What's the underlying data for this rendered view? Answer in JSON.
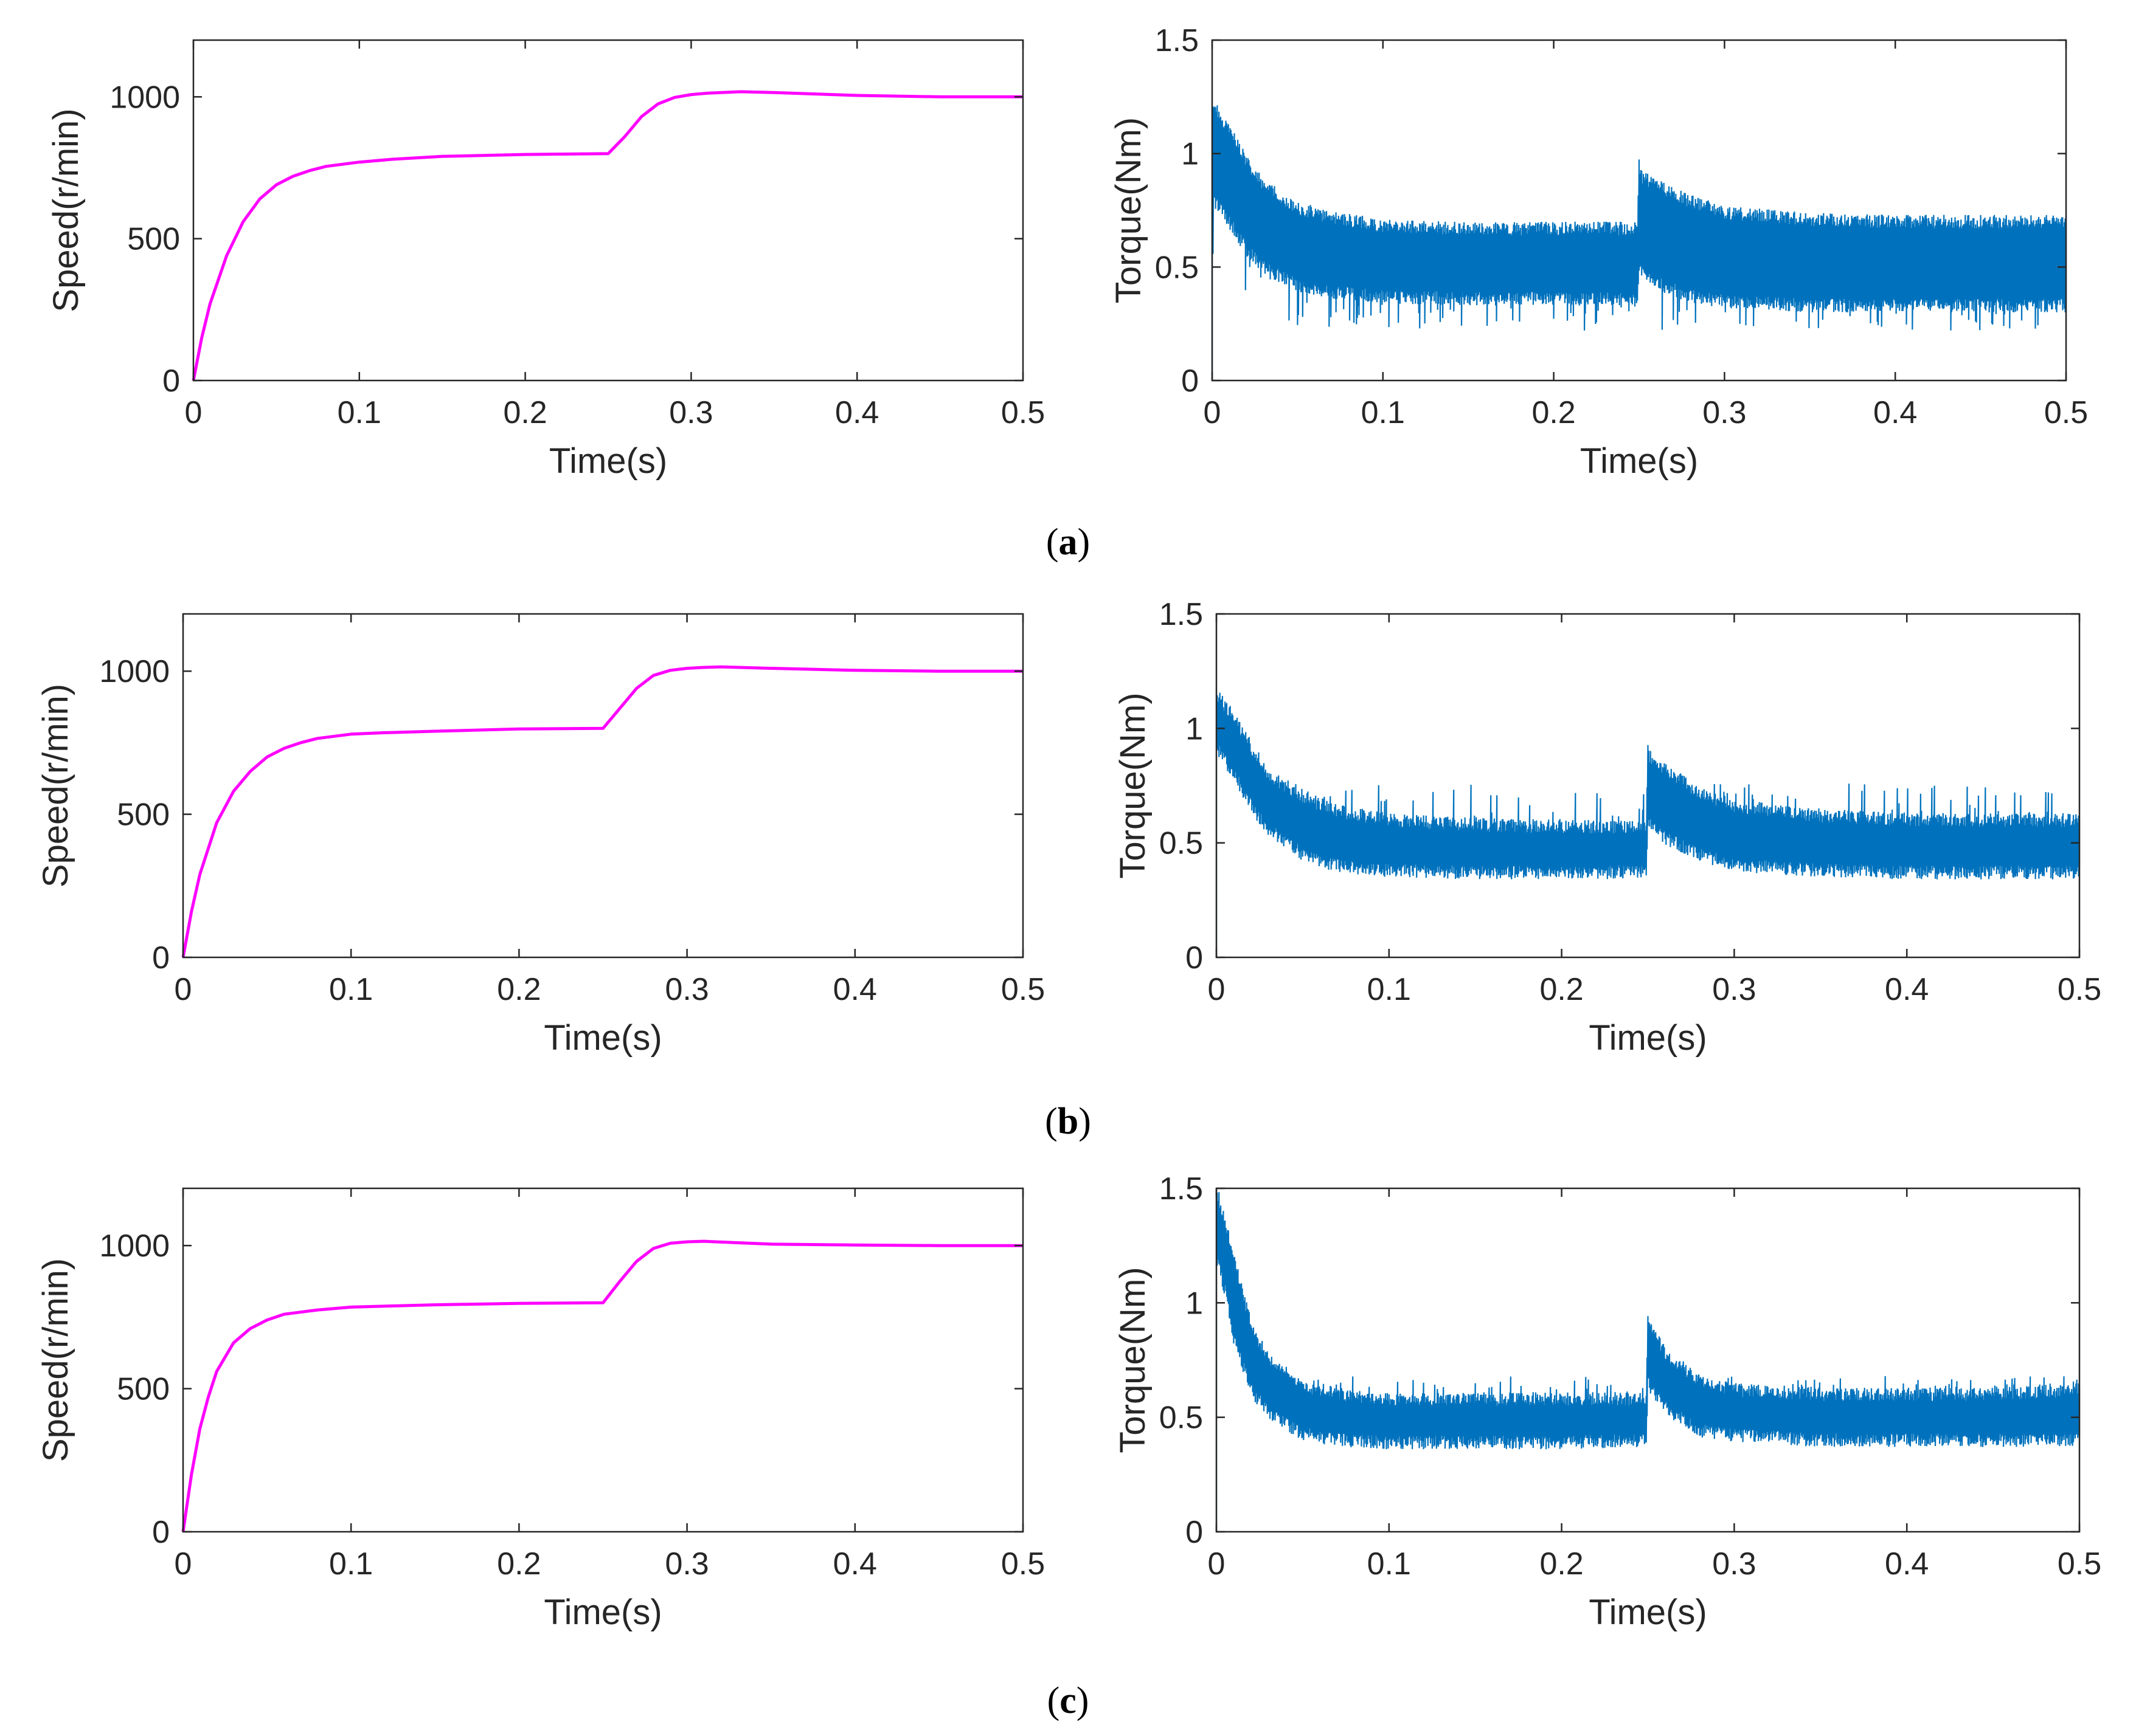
{
  "colors": {
    "speed_line": "#FF00FF",
    "torque_line": "#0072BD",
    "axis": "#262626"
  },
  "captions": [
    "a",
    "b",
    "c"
  ],
  "chart_data": [
    {
      "id": "a-speed",
      "type": "line",
      "panel": "a",
      "xlabel": "Time(s)",
      "ylabel": "Speed(r/min)",
      "xlim": [
        0,
        0.5
      ],
      "ylim": [
        0,
        1200
      ],
      "xticks": [
        0,
        0.1,
        0.2,
        0.3,
        0.4,
        0.5
      ],
      "xtick_labels": [
        "0",
        "0.1",
        "0.2",
        "0.3",
        "0.4",
        "0.5"
      ],
      "yticks": [
        0,
        500,
        1000
      ],
      "ytick_labels": [
        "0",
        "500",
        "1000"
      ],
      "series": [
        {
          "name": "speed",
          "color": "#FF00FF",
          "x": [
            0,
            0.005,
            0.01,
            0.02,
            0.03,
            0.04,
            0.05,
            0.06,
            0.07,
            0.08,
            0.1,
            0.12,
            0.15,
            0.2,
            0.25,
            0.26,
            0.27,
            0.28,
            0.29,
            0.3,
            0.31,
            0.33,
            0.35,
            0.4,
            0.45,
            0.5
          ],
          "values": [
            0,
            150,
            270,
            440,
            560,
            640,
            690,
            720,
            740,
            755,
            770,
            780,
            790,
            797,
            800,
            860,
            930,
            975,
            998,
            1008,
            1013,
            1018,
            1015,
            1005,
            1000,
            1000
          ]
        }
      ]
    },
    {
      "id": "a-torque",
      "type": "line",
      "panel": "a",
      "xlabel": "Time(s)",
      "ylabel": "Torque(Nm)",
      "xlim": [
        0,
        0.5
      ],
      "ylim": [
        0,
        1.5
      ],
      "xticks": [
        0,
        0.1,
        0.2,
        0.3,
        0.4,
        0.5
      ],
      "xtick_labels": [
        "0",
        "0.1",
        "0.2",
        "0.3",
        "0.4",
        "0.5"
      ],
      "yticks": [
        0,
        0.5,
        1,
        1.5
      ],
      "ytick_labels": [
        "0",
        "0.5",
        "1",
        "1.5"
      ],
      "series": [
        {
          "name": "torque",
          "color": "#0072BD",
          "x": [
            0,
            0.01,
            0.02,
            0.03,
            0.05,
            0.07,
            0.1,
            0.15,
            0.2,
            0.249,
            0.25,
            0.251,
            0.26,
            0.28,
            0.3,
            0.35,
            0.4,
            0.45,
            0.5
          ],
          "upper": [
            1.22,
            1.1,
            0.97,
            0.86,
            0.76,
            0.72,
            0.68,
            0.67,
            0.67,
            0.67,
            0.96,
            0.9,
            0.86,
            0.79,
            0.74,
            0.71,
            0.7,
            0.7,
            0.7
          ],
          "lower": [
            0.8,
            0.7,
            0.58,
            0.5,
            0.42,
            0.39,
            0.37,
            0.36,
            0.36,
            0.36,
            0.5,
            0.48,
            0.43,
            0.37,
            0.35,
            0.33,
            0.33,
            0.33,
            0.33
          ],
          "spike_min": 0.22
        }
      ]
    },
    {
      "id": "b-speed",
      "type": "line",
      "panel": "b",
      "xlabel": "Time(s)",
      "ylabel": "Speed(r/min)",
      "xlim": [
        0,
        0.5
      ],
      "ylim": [
        0,
        1200
      ],
      "xticks": [
        0,
        0.1,
        0.2,
        0.3,
        0.4,
        0.5
      ],
      "xtick_labels": [
        "0",
        "0.1",
        "0.2",
        "0.3",
        "0.4",
        "0.5"
      ],
      "yticks": [
        0,
        500,
        1000
      ],
      "ytick_labels": [
        "0",
        "500",
        "1000"
      ],
      "series": [
        {
          "name": "speed",
          "color": "#FF00FF",
          "x": [
            0,
            0.005,
            0.01,
            0.02,
            0.03,
            0.04,
            0.05,
            0.06,
            0.07,
            0.08,
            0.1,
            0.12,
            0.15,
            0.2,
            0.25,
            0.26,
            0.27,
            0.28,
            0.29,
            0.3,
            0.31,
            0.32,
            0.35,
            0.4,
            0.45,
            0.5
          ],
          "values": [
            0,
            160,
            290,
            470,
            580,
            650,
            700,
            730,
            750,
            765,
            780,
            785,
            790,
            798,
            800,
            870,
            940,
            985,
            1003,
            1010,
            1013,
            1015,
            1010,
            1003,
            1000,
            1000
          ]
        }
      ]
    },
    {
      "id": "b-torque",
      "type": "line",
      "panel": "b",
      "xlabel": "Time(s)",
      "ylabel": "Torque(Nm)",
      "xlim": [
        0,
        0.5
      ],
      "ylim": [
        0,
        1.5
      ],
      "xticks": [
        0,
        0.1,
        0.2,
        0.3,
        0.4,
        0.5
      ],
      "xtick_labels": [
        "0",
        "0.1",
        "0.2",
        "0.3",
        "0.4",
        "0.5"
      ],
      "yticks": [
        0,
        0.5,
        1,
        1.5
      ],
      "ytick_labels": [
        "0",
        "0.5",
        "1",
        "1.5"
      ],
      "series": [
        {
          "name": "torque",
          "color": "#0072BD",
          "x": [
            0,
            0.01,
            0.02,
            0.03,
            0.05,
            0.07,
            0.1,
            0.15,
            0.2,
            0.249,
            0.25,
            0.251,
            0.26,
            0.28,
            0.3,
            0.35,
            0.4,
            0.45,
            0.5
          ],
          "upper": [
            1.15,
            1.05,
            0.92,
            0.8,
            0.7,
            0.64,
            0.6,
            0.58,
            0.57,
            0.57,
            0.94,
            0.88,
            0.82,
            0.72,
            0.66,
            0.62,
            0.6,
            0.6,
            0.6
          ],
          "lower": [
            0.92,
            0.8,
            0.66,
            0.56,
            0.45,
            0.4,
            0.38,
            0.37,
            0.37,
            0.37,
            0.6,
            0.58,
            0.52,
            0.45,
            0.4,
            0.38,
            0.37,
            0.37,
            0.37
          ],
          "spike_max": 0.76
        }
      ]
    },
    {
      "id": "c-speed",
      "type": "line",
      "panel": "c",
      "xlabel": "Time(s)",
      "ylabel": "Speed(r/min)",
      "xlim": [
        0,
        0.5
      ],
      "ylim": [
        0,
        1200
      ],
      "xticks": [
        0,
        0.1,
        0.2,
        0.3,
        0.4,
        0.5
      ],
      "xtick_labels": [
        "0",
        "0.1",
        "0.2",
        "0.3",
        "0.4",
        "0.5"
      ],
      "yticks": [
        0,
        500,
        1000
      ],
      "ytick_labels": [
        "0",
        "500",
        "1000"
      ],
      "series": [
        {
          "name": "speed",
          "color": "#FF00FF",
          "x": [
            0,
            0.005,
            0.01,
            0.015,
            0.02,
            0.03,
            0.04,
            0.05,
            0.06,
            0.08,
            0.1,
            0.15,
            0.2,
            0.25,
            0.26,
            0.27,
            0.28,
            0.29,
            0.3,
            0.31,
            0.33,
            0.35,
            0.4,
            0.45,
            0.5
          ],
          "values": [
            0,
            200,
            360,
            470,
            560,
            660,
            710,
            740,
            760,
            775,
            785,
            793,
            798,
            800,
            875,
            945,
            990,
            1008,
            1013,
            1015,
            1010,
            1005,
            1002,
            1000,
            1000
          ]
        }
      ]
    },
    {
      "id": "c-torque",
      "type": "line",
      "panel": "c",
      "xlabel": "Time(s)",
      "ylabel": "Torque(Nm)",
      "xlim": [
        0,
        0.5
      ],
      "ylim": [
        0,
        1.5
      ],
      "xticks": [
        0,
        0.1,
        0.2,
        0.3,
        0.4,
        0.5
      ],
      "xtick_labels": [
        "0",
        "0.1",
        "0.2",
        "0.3",
        "0.4",
        "0.5"
      ],
      "yticks": [
        0,
        0.5,
        1,
        1.5
      ],
      "ytick_labels": [
        "0",
        "0.5",
        "1",
        "1.5"
      ],
      "series": [
        {
          "name": "torque",
          "color": "#0072BD",
          "x": [
            0,
            0.005,
            0.01,
            0.02,
            0.03,
            0.04,
            0.05,
            0.07,
            0.1,
            0.15,
            0.2,
            0.249,
            0.25,
            0.252,
            0.26,
            0.28,
            0.3,
            0.35,
            0.4,
            0.45,
            0.5
          ],
          "upper": [
            1.5,
            1.35,
            1.2,
            0.9,
            0.76,
            0.7,
            0.64,
            0.6,
            0.58,
            0.58,
            0.58,
            0.58,
            0.92,
            0.9,
            0.78,
            0.66,
            0.62,
            0.6,
            0.6,
            0.6,
            0.62
          ],
          "lower": [
            1.2,
            1.05,
            0.85,
            0.62,
            0.52,
            0.47,
            0.43,
            0.4,
            0.39,
            0.39,
            0.39,
            0.4,
            0.65,
            0.62,
            0.54,
            0.44,
            0.42,
            0.4,
            0.4,
            0.4,
            0.4
          ],
          "spike_max": 0.68
        }
      ]
    }
  ]
}
